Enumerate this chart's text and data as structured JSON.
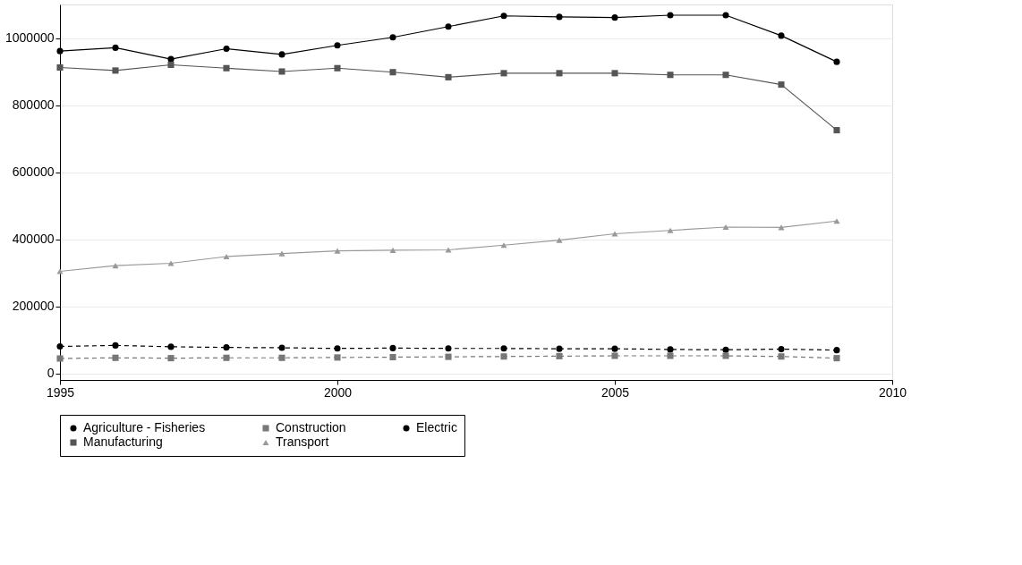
{
  "chart_data": {
    "type": "line",
    "x": [
      1995,
      1996,
      1997,
      1998,
      1999,
      2000,
      2001,
      2002,
      2003,
      2004,
      2005,
      2006,
      2007,
      2008,
      2009
    ],
    "series": [
      {
        "name": "Agriculture - Fisheries",
        "color": "#000000",
        "marker": "circle",
        "line_style": "dashed",
        "values": [
          80000,
          83000,
          79000,
          77000,
          76000,
          74000,
          75000,
          74000,
          74000,
          73000,
          73000,
          71000,
          70000,
          72000,
          69000
        ]
      },
      {
        "name": "Construction",
        "color": "#777777",
        "marker": "square",
        "line_style": "dashed",
        "values": [
          44000,
          46000,
          45000,
          46000,
          46000,
          47000,
          48000,
          49000,
          50000,
          51000,
          52000,
          52000,
          52000,
          50000,
          45000
        ]
      },
      {
        "name": "Electric",
        "color": "#000000",
        "marker": "circle",
        "line_style": "solid",
        "values": [
          961000,
          971000,
          937000,
          968000,
          951000,
          978000,
          1002000,
          1034000,
          1066000,
          1063000,
          1061000,
          1068000,
          1068000,
          1007000,
          929000
        ]
      },
      {
        "name": "Manufacturing",
        "color": "#555555",
        "marker": "square",
        "line_style": "solid",
        "values": [
          912000,
          903000,
          920000,
          910000,
          900000,
          910000,
          898000,
          883000,
          895000,
          895000,
          895000,
          890000,
          890000,
          861000,
          725000
        ]
      },
      {
        "name": "Transport",
        "color": "#999999",
        "marker": "triangle",
        "line_style": "solid",
        "values": [
          304000,
          321000,
          328000,
          348000,
          357000,
          365000,
          367000,
          368000,
          382000,
          397000,
          416000,
          426000,
          436000,
          435000,
          454000
        ]
      }
    ],
    "xlim": [
      1995,
      2010
    ],
    "xticks": [
      1995,
      2000,
      2005,
      2010
    ],
    "ylim": [
      -20000,
      1100000
    ],
    "yticks": [
      0,
      200000,
      400000,
      600000,
      800000,
      1000000
    ],
    "grid": "y",
    "legend": "bottom"
  }
}
